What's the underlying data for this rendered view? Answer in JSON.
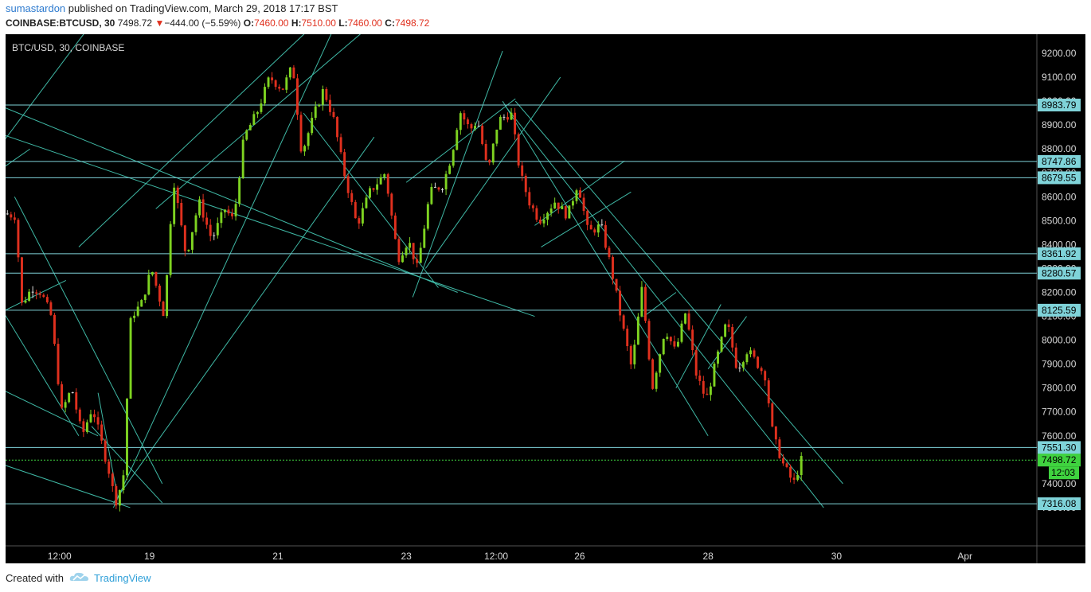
{
  "header": {
    "author": "sumastardon",
    "published_text": " published on TradingView.com, March 29, 2018 17:17 BST",
    "symbol": "COINBASE:BTCUSD, 30",
    "last": "7498.72",
    "change_arrow": "▼",
    "change": "−444.00 (−5.59%)",
    "open_label": "O:",
    "open": "7460.00",
    "high_label": "H:",
    "high": "7510.00",
    "low_label": "L:",
    "low": "7460.00",
    "close_label": "C:",
    "close": "7498.72"
  },
  "footer": {
    "created_with": "Created with",
    "brand": "TradingView"
  },
  "colors": {
    "background": "#000000",
    "up_candle": "#7ed321",
    "down_candle": "#e0301e",
    "doji_candle": "#d8d8d8",
    "trendline": "#3fb8a5",
    "level_line": "#7fd3d9",
    "level_label_bg": "#7fd3d9",
    "price_line": "#3fd33f",
    "axis_text": "#d8d8d8"
  },
  "chart_data": {
    "type": "candlestick",
    "title": "BTC/USD, 30, COINBASE",
    "ylim": [
      7140,
      9280
    ],
    "y_ticks": [
      9200,
      9100,
      9000,
      8900,
      8800,
      8700,
      8600,
      8500,
      8400,
      8300,
      8200,
      8100,
      8000,
      7900,
      7800,
      7700,
      7600,
      7500,
      7400,
      7300
    ],
    "x_ticks": [
      {
        "label": "12:00",
        "t": 0.55
      },
      {
        "label": "19",
        "t": 1.25
      },
      {
        "label": "21",
        "t": 2.25
      },
      {
        "label": "23",
        "t": 3.25
      },
      {
        "label": "12:00",
        "t": 3.95
      },
      {
        "label": "26",
        "t": 4.6
      },
      {
        "label": "28",
        "t": 5.6
      },
      {
        "label": "30",
        "t": 6.6
      },
      {
        "label": "Apr",
        "t": 7.6
      }
    ],
    "x_range": [
      0.13,
      8.16
    ],
    "horizontal_levels": [
      {
        "label": "8983.79",
        "value": 8983.79
      },
      {
        "label": "8747.86",
        "value": 8747.86
      },
      {
        "label": "8679.55",
        "value": 8679.55
      },
      {
        "label": "8361.92",
        "value": 8361.92
      },
      {
        "label": "8280.57",
        "value": 8280.57
      },
      {
        "label": "8125.59",
        "value": 8125.59
      },
      {
        "label": "7551.30",
        "value": 7551.3
      },
      {
        "label": "7316.08",
        "value": 7316.08
      }
    ],
    "last_price": {
      "label": "7498.72",
      "value": 7498.72
    },
    "countdown": "12:03",
    "price_path": [
      [
        0.13,
        8530
      ],
      [
        0.22,
        8520
      ],
      [
        0.27,
        8150
      ],
      [
        0.35,
        8220
      ],
      [
        0.42,
        8200
      ],
      [
        0.5,
        8100
      ],
      [
        0.58,
        7700
      ],
      [
        0.66,
        7800
      ],
      [
        0.74,
        7600
      ],
      [
        0.82,
        7720
      ],
      [
        0.95,
        7450
      ],
      [
        1.0,
        7320
      ],
      [
        1.06,
        7420
      ],
      [
        1.12,
        8100
      ],
      [
        1.2,
        8150
      ],
      [
        1.28,
        8300
      ],
      [
        1.38,
        8100
      ],
      [
        1.45,
        8680
      ],
      [
        1.55,
        8350
      ],
      [
        1.65,
        8580
      ],
      [
        1.75,
        8420
      ],
      [
        1.85,
        8550
      ],
      [
        1.92,
        8500
      ],
      [
        2.0,
        8850
      ],
      [
        2.1,
        8950
      ],
      [
        2.2,
        9100
      ],
      [
        2.3,
        9050
      ],
      [
        2.38,
        9150
      ],
      [
        2.45,
        8780
      ],
      [
        2.55,
        8950
      ],
      [
        2.62,
        9050
      ],
      [
        2.7,
        8920
      ],
      [
        2.78,
        8700
      ],
      [
        2.88,
        8480
      ],
      [
        2.98,
        8620
      ],
      [
        3.1,
        8700
      ],
      [
        3.2,
        8340
      ],
      [
        3.28,
        8420
      ],
      [
        3.35,
        8300
      ],
      [
        3.45,
        8620
      ],
      [
        3.55,
        8650
      ],
      [
        3.62,
        8780
      ],
      [
        3.68,
        8960
      ],
      [
        3.76,
        8880
      ],
      [
        3.82,
        8920
      ],
      [
        3.9,
        8700
      ],
      [
        3.98,
        8920
      ],
      [
        4.08,
        8950
      ],
      [
        4.15,
        8700
      ],
      [
        4.22,
        8580
      ],
      [
        4.3,
        8500
      ],
      [
        4.42,
        8580
      ],
      [
        4.52,
        8520
      ],
      [
        4.6,
        8660
      ],
      [
        4.68,
        8450
      ],
      [
        4.78,
        8480
      ],
      [
        4.86,
        8300
      ],
      [
        4.94,
        8080
      ],
      [
        5.02,
        7880
      ],
      [
        5.1,
        8220
      ],
      [
        5.18,
        7800
      ],
      [
        5.28,
        8050
      ],
      [
        5.36,
        7950
      ],
      [
        5.44,
        8120
      ],
      [
        5.52,
        7860
      ],
      [
        5.6,
        7750
      ],
      [
        5.68,
        7920
      ],
      [
        5.76,
        8080
      ],
      [
        5.84,
        7880
      ],
      [
        5.92,
        7960
      ],
      [
        6.0,
        7900
      ],
      [
        6.06,
        7850
      ],
      [
        6.12,
        7600
      ],
      [
        6.2,
        7480
      ],
      [
        6.28,
        7400
      ],
      [
        6.34,
        7498.72
      ]
    ],
    "candle_count": 220,
    "trendlines": [
      [
        0.0,
        8750,
        1.6,
        9900
      ],
      [
        0.0,
        8680,
        0.32,
        8800
      ],
      [
        0.7,
        8390,
        2.65,
        9380
      ],
      [
        0.97,
        7300,
        2.75,
        9380
      ],
      [
        0.97,
        7320,
        3.0,
        8850
      ],
      [
        1.3,
        8550,
        3.0,
        9330
      ],
      [
        0.2,
        8600,
        1.35,
        7400
      ],
      [
        0.02,
        8200,
        0.7,
        7600
      ],
      [
        0.03,
        8100,
        0.6,
        8250
      ],
      [
        0.0,
        7500,
        1.1,
        7300
      ],
      [
        0.0,
        7820,
        0.85,
        7600
      ],
      [
        0.85,
        7780,
        1.0,
        7350
      ],
      [
        0.8,
        7640,
        1.35,
        7320
      ],
      [
        0.0,
        8880,
        4.25,
        8100
      ],
      [
        0.0,
        9000,
        3.65,
        8200
      ],
      [
        2.45,
        8950,
        3.5,
        8220
      ],
      [
        3.3,
        8180,
        4.0,
        9210
      ],
      [
        3.4,
        8300,
        4.45,
        9100
      ],
      [
        3.25,
        8660,
        4.1,
        9010
      ],
      [
        4.0,
        9000,
        5.6,
        7600
      ],
      [
        4.02,
        8980,
        6.5,
        7300
      ],
      [
        4.1,
        9000,
        6.65,
        7400
      ],
      [
        4.25,
        8480,
        4.95,
        8750
      ],
      [
        4.3,
        8390,
        5.0,
        8620
      ],
      [
        5.1,
        8100,
        5.35,
        8200
      ],
      [
        5.35,
        7800,
        5.7,
        8150
      ],
      [
        5.6,
        7880,
        5.9,
        8100
      ]
    ]
  }
}
